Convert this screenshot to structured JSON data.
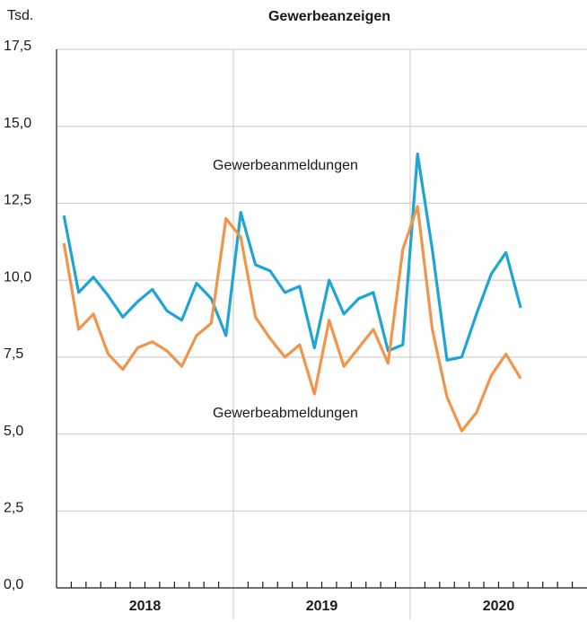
{
  "chart_data": {
    "type": "line",
    "title": "Gewerbeanzeigen",
    "y_label": "Tsd.",
    "categories": [
      null,
      null,
      null,
      null,
      null,
      null,
      null,
      null,
      null,
      null,
      null,
      null,
      null,
      null,
      null,
      null,
      null,
      null,
      null,
      null,
      null,
      null,
      null,
      null,
      null,
      null,
      null,
      null,
      null,
      null,
      null,
      null,
      null,
      null,
      null,
      null
    ],
    "groups": [
      "2018",
      "2019",
      "2020"
    ],
    "series": [
      {
        "name": "Gewerbeanmeldungen",
        "color": "#1ea5d6",
        "values": [
          12.1,
          9.6,
          10.1,
          9.5,
          8.8,
          9.3,
          9.7,
          9.0,
          8.7,
          9.9,
          9.4,
          8.2,
          12.2,
          10.5,
          10.3,
          9.6,
          9.8,
          7.8,
          10.0,
          8.9,
          9.4,
          9.6,
          7.7,
          7.9,
          14.1,
          11.0,
          7.4,
          7.5,
          8.9,
          10.2,
          10.9,
          9.1,
          null,
          null,
          null,
          null
        ]
      },
      {
        "name": "Gewerbeabmeldungen",
        "color": "#f0954a",
        "values": [
          11.2,
          8.4,
          8.9,
          7.6,
          7.1,
          7.8,
          8.0,
          7.7,
          7.2,
          8.2,
          8.6,
          12.0,
          11.4,
          8.8,
          8.1,
          7.5,
          7.9,
          6.3,
          8.7,
          7.2,
          7.8,
          8.4,
          7.3,
          11.0,
          12.4,
          8.4,
          6.2,
          5.1,
          5.7,
          6.9,
          7.6,
          6.8,
          null,
          null,
          null,
          null
        ]
      }
    ],
    "ylim": [
      0,
      17.5
    ],
    "yticks": [
      {
        "value": 0,
        "label": "0,0"
      },
      {
        "value": 2.5,
        "label": "2,5"
      },
      {
        "value": 5,
        "label": "5,0"
      },
      {
        "value": 7.5,
        "label": "7,5"
      },
      {
        "value": 10,
        "label": "10,0"
      },
      {
        "value": 12.5,
        "label": "12,5"
      },
      {
        "value": 15,
        "label": "15,0"
      },
      {
        "value": 17.5,
        "label": "17,5"
      }
    ],
    "grid": true
  }
}
